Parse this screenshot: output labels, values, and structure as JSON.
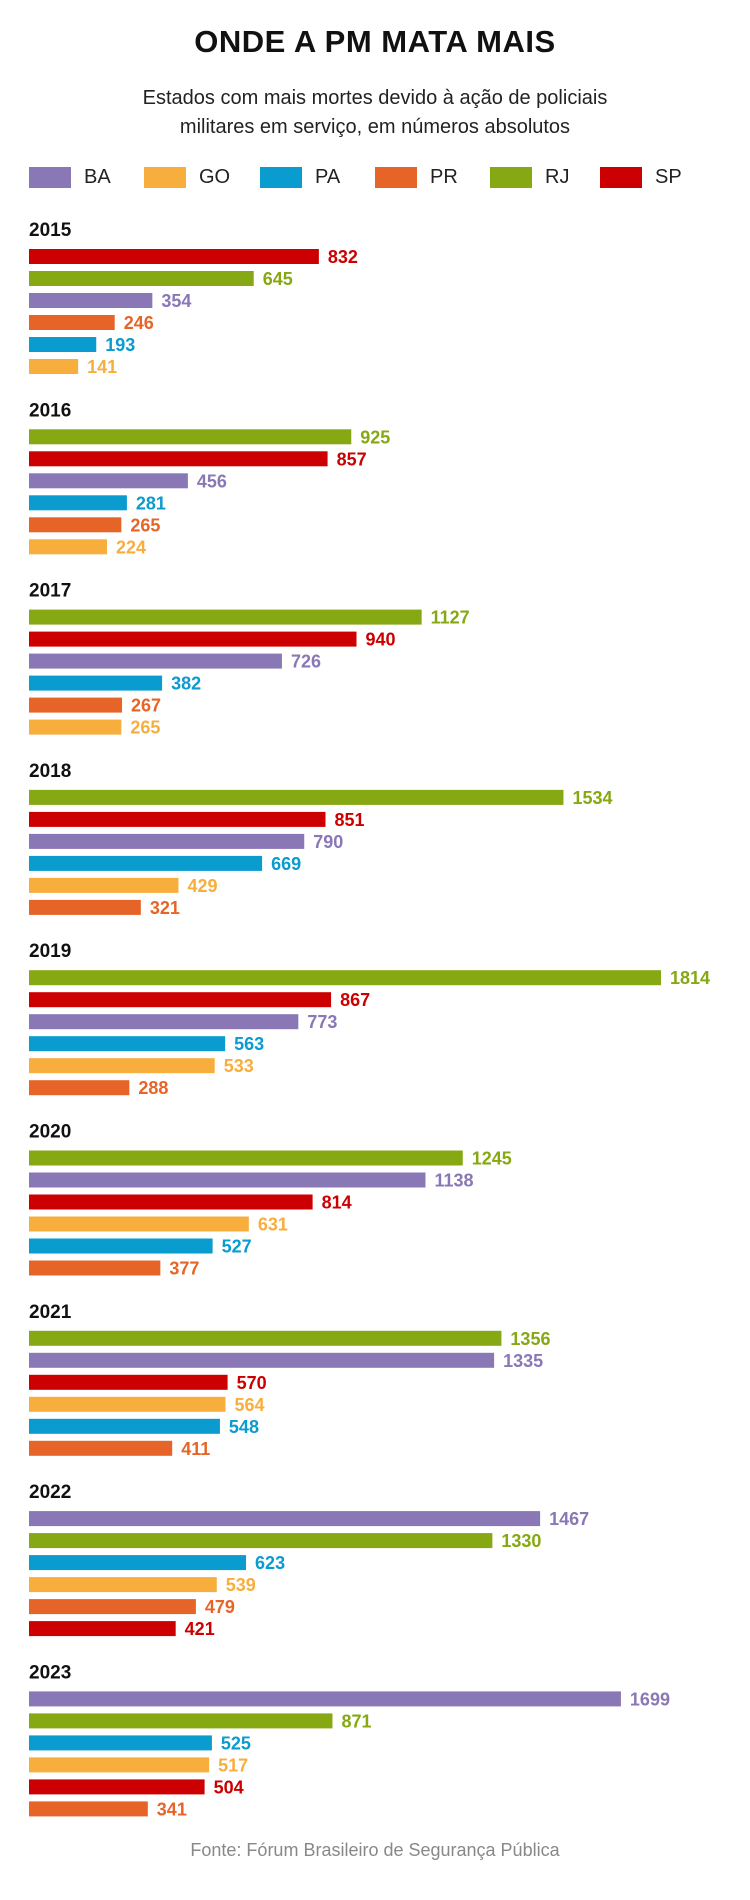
{
  "chart_data": {
    "type": "bar",
    "orientation": "horizontal",
    "title": "ONDE A PM MATA MAIS",
    "subtitle_lines": [
      "Estados com mais mortes devido à ação de policiais",
      "militares em serviço, em números absolutos"
    ],
    "source": "Fonte: Fórum Brasileiro de Segurança Pública",
    "xlim": [
      0,
      1814
    ],
    "legend": [
      {
        "name": "BA",
        "color": "#8a77b5"
      },
      {
        "name": "GO",
        "color": "#f7ae3d"
      },
      {
        "name": "PA",
        "color": "#0a9bcf"
      },
      {
        "name": "PR",
        "color": "#e66427"
      },
      {
        "name": "RJ",
        "color": "#86a812"
      },
      {
        "name": "SP",
        "color": "#cc0000"
      }
    ],
    "groups": [
      {
        "year": "2015",
        "bars": [
          {
            "state": "SP",
            "value": 832
          },
          {
            "state": "RJ",
            "value": 645
          },
          {
            "state": "BA",
            "value": 354
          },
          {
            "state": "PR",
            "value": 246
          },
          {
            "state": "PA",
            "value": 193
          },
          {
            "state": "GO",
            "value": 141
          }
        ]
      },
      {
        "year": "2016",
        "bars": [
          {
            "state": "RJ",
            "value": 925
          },
          {
            "state": "SP",
            "value": 857
          },
          {
            "state": "BA",
            "value": 456
          },
          {
            "state": "PA",
            "value": 281
          },
          {
            "state": "PR",
            "value": 265
          },
          {
            "state": "GO",
            "value": 224
          }
        ]
      },
      {
        "year": "2017",
        "bars": [
          {
            "state": "RJ",
            "value": 1127
          },
          {
            "state": "SP",
            "value": 940
          },
          {
            "state": "BA",
            "value": 726
          },
          {
            "state": "PA",
            "value": 382
          },
          {
            "state": "PR",
            "value": 267
          },
          {
            "state": "GO",
            "value": 265
          }
        ]
      },
      {
        "year": "2018",
        "bars": [
          {
            "state": "RJ",
            "value": 1534
          },
          {
            "state": "SP",
            "value": 851
          },
          {
            "state": "BA",
            "value": 790
          },
          {
            "state": "PA",
            "value": 669
          },
          {
            "state": "GO",
            "value": 429
          },
          {
            "state": "PR",
            "value": 321
          }
        ]
      },
      {
        "year": "2019",
        "bars": [
          {
            "state": "RJ",
            "value": 1814
          },
          {
            "state": "SP",
            "value": 867
          },
          {
            "state": "BA",
            "value": 773
          },
          {
            "state": "PA",
            "value": 563
          },
          {
            "state": "GO",
            "value": 533
          },
          {
            "state": "PR",
            "value": 288
          }
        ]
      },
      {
        "year": "2020",
        "bars": [
          {
            "state": "RJ",
            "value": 1245
          },
          {
            "state": "BA",
            "value": 1138
          },
          {
            "state": "SP",
            "value": 814
          },
          {
            "state": "GO",
            "value": 631
          },
          {
            "state": "PA",
            "value": 527
          },
          {
            "state": "PR",
            "value": 377
          }
        ]
      },
      {
        "year": "2021",
        "bars": [
          {
            "state": "RJ",
            "value": 1356
          },
          {
            "state": "BA",
            "value": 1335
          },
          {
            "state": "SP",
            "value": 570
          },
          {
            "state": "GO",
            "value": 564
          },
          {
            "state": "PA",
            "value": 548
          },
          {
            "state": "PR",
            "value": 411
          }
        ]
      },
      {
        "year": "2022",
        "bars": [
          {
            "state": "BA",
            "value": 1467
          },
          {
            "state": "RJ",
            "value": 1330
          },
          {
            "state": "PA",
            "value": 623
          },
          {
            "state": "GO",
            "value": 539
          },
          {
            "state": "PR",
            "value": 479
          },
          {
            "state": "SP",
            "value": 421
          }
        ]
      },
      {
        "year": "2023",
        "bars": [
          {
            "state": "BA",
            "value": 1699
          },
          {
            "state": "RJ",
            "value": 871
          },
          {
            "state": "PA",
            "value": 525
          },
          {
            "state": "GO",
            "value": 517
          },
          {
            "state": "SP",
            "value": 504
          },
          {
            "state": "PR",
            "value": 341
          }
        ]
      }
    ]
  }
}
